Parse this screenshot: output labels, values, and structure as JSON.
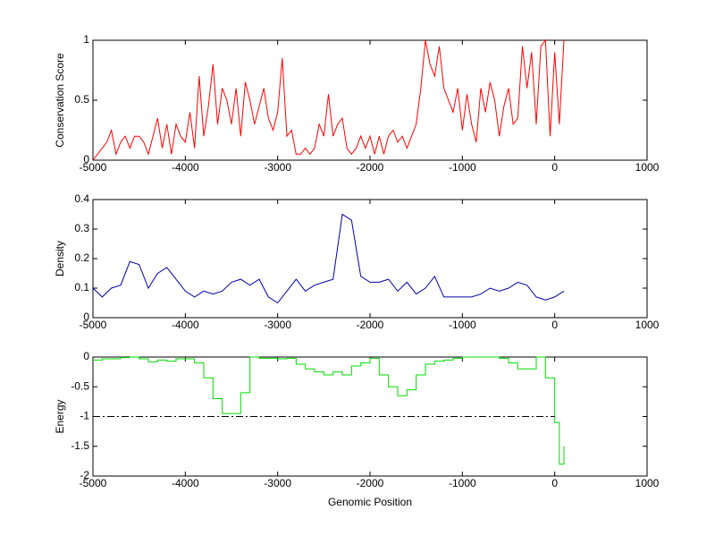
{
  "chart_data": [
    {
      "type": "line",
      "ylabel": "Conservation Score",
      "xlim": [
        -5000,
        1000
      ],
      "xticks": [
        -5000,
        -4000,
        -3000,
        -2000,
        -1000,
        0,
        1000
      ],
      "ylim": [
        0,
        1
      ],
      "yticks": [
        0,
        0.5,
        1
      ],
      "series": [
        {
          "color": "#ff0000",
          "x": [
            -5000,
            -4950,
            -4900,
            -4850,
            -4800,
            -4750,
            -4700,
            -4650,
            -4600,
            -4550,
            -4500,
            -4450,
            -4400,
            -4350,
            -4300,
            -4250,
            -4200,
            -4150,
            -4100,
            -4050,
            -4000,
            -3950,
            -3900,
            -3850,
            -3800,
            -3750,
            -3700,
            -3650,
            -3600,
            -3550,
            -3500,
            -3450,
            -3400,
            -3350,
            -3300,
            -3250,
            -3200,
            -3150,
            -3100,
            -3050,
            -3000,
            -2950,
            -2900,
            -2850,
            -2800,
            -2750,
            -2700,
            -2650,
            -2600,
            -2550,
            -2500,
            -2450,
            -2400,
            -2350,
            -2300,
            -2250,
            -2200,
            -2150,
            -2100,
            -2050,
            -2000,
            -1950,
            -1900,
            -1850,
            -1800,
            -1750,
            -1700,
            -1650,
            -1600,
            -1550,
            -1500,
            -1450,
            -1400,
            -1350,
            -1300,
            -1250,
            -1200,
            -1150,
            -1100,
            -1050,
            -1000,
            -950,
            -900,
            -850,
            -800,
            -750,
            -700,
            -650,
            -600,
            -550,
            -500,
            -450,
            -400,
            -350,
            -300,
            -250,
            -200,
            -150,
            -100,
            -50,
            0,
            50,
            100
          ],
          "values": [
            0,
            0.05,
            0.1,
            0.15,
            0.25,
            0.05,
            0.15,
            0.2,
            0.1,
            0.2,
            0.2,
            0.15,
            0.05,
            0.2,
            0.35,
            0.1,
            0.3,
            0.05,
            0.3,
            0.2,
            0.15,
            0.4,
            0.1,
            0.7,
            0.2,
            0.45,
            0.8,
            0.3,
            0.6,
            0.5,
            0.3,
            0.6,
            0.2,
            0.65,
            0.5,
            0.3,
            0.45,
            0.6,
            0.35,
            0.25,
            0.4,
            0.85,
            0.2,
            0.25,
            0.05,
            0.05,
            0.1,
            0.05,
            0.1,
            0.3,
            0.2,
            0.55,
            0.2,
            0.3,
            0.35,
            0.1,
            0.05,
            0.1,
            0.2,
            0.1,
            0.2,
            0.05,
            0.2,
            0.05,
            0.2,
            0.25,
            0.15,
            0.2,
            0.1,
            0.2,
            0.3,
            0.6,
            1,
            0.8,
            0.7,
            0.95,
            0.6,
            0.5,
            0.4,
            0.6,
            0.25,
            0.55,
            0.3,
            0.15,
            0.6,
            0.4,
            0.65,
            0.5,
            0.2,
            0.45,
            0.6,
            0.3,
            0.35,
            0.95,
            0.6,
            0.9,
            0.3,
            0.95,
            1,
            0.2,
            0.9,
            0.3,
            1
          ]
        }
      ]
    },
    {
      "type": "line",
      "ylabel": "Density",
      "xlim": [
        -5000,
        1000
      ],
      "xticks": [
        -5000,
        -4000,
        -3000,
        -2000,
        -1000,
        0,
        1000
      ],
      "ylim": [
        0,
        0.4
      ],
      "yticks": [
        0,
        0.1,
        0.2,
        0.3,
        0.4
      ],
      "series": [
        {
          "color": "#0000aa",
          "x": [
            -5000,
            -4900,
            -4800,
            -4700,
            -4600,
            -4500,
            -4400,
            -4300,
            -4200,
            -4100,
            -4000,
            -3900,
            -3800,
            -3700,
            -3600,
            -3500,
            -3400,
            -3300,
            -3200,
            -3100,
            -3000,
            -2900,
            -2800,
            -2700,
            -2600,
            -2500,
            -2400,
            -2300,
            -2200,
            -2100,
            -2000,
            -1900,
            -1800,
            -1700,
            -1600,
            -1500,
            -1400,
            -1300,
            -1200,
            -1100,
            -1000,
            -900,
            -800,
            -700,
            -600,
            -500,
            -400,
            -300,
            -200,
            -100,
            0,
            100
          ],
          "values": [
            0.1,
            0.07,
            0.1,
            0.11,
            0.19,
            0.18,
            0.1,
            0.15,
            0.17,
            0.13,
            0.09,
            0.07,
            0.09,
            0.08,
            0.09,
            0.12,
            0.13,
            0.11,
            0.13,
            0.07,
            0.05,
            0.09,
            0.13,
            0.09,
            0.11,
            0.12,
            0.13,
            0.35,
            0.33,
            0.14,
            0.12,
            0.12,
            0.13,
            0.09,
            0.12,
            0.08,
            0.1,
            0.14,
            0.07,
            0.07,
            0.07,
            0.07,
            0.08,
            0.1,
            0.09,
            0.1,
            0.12,
            0.11,
            0.07,
            0.06,
            0.07,
            0.09
          ]
        }
      ]
    },
    {
      "type": "line",
      "ylabel": "Energy",
      "xlabel": "Genomic Position",
      "drawstyle": "steps",
      "xlim": [
        -5000,
        1000
      ],
      "xticks": [
        -5000,
        -4000,
        -3000,
        -2000,
        -1000,
        0,
        1000
      ],
      "ylim": [
        -2,
        0
      ],
      "yticks": [
        -2,
        -1.5,
        -1,
        -0.5,
        0
      ],
      "series": [
        {
          "color": "#00dd00",
          "x": [
            -5000,
            -4900,
            -4800,
            -4700,
            -4600,
            -4500,
            -4400,
            -4300,
            -4200,
            -4100,
            -4000,
            -3900,
            -3800,
            -3700,
            -3600,
            -3500,
            -3400,
            -3300,
            -3200,
            -3100,
            -3000,
            -2900,
            -2800,
            -2700,
            -2600,
            -2500,
            -2400,
            -2300,
            -2200,
            -2100,
            -2000,
            -1900,
            -1800,
            -1700,
            -1600,
            -1500,
            -1400,
            -1300,
            -1200,
            -1100,
            -1000,
            -900,
            -800,
            -700,
            -600,
            -500,
            -400,
            -300,
            -200,
            -100,
            0,
            50,
            100
          ],
          "values": [
            -0.05,
            -0.03,
            -0.03,
            -0.01,
            0,
            -0.03,
            -0.08,
            -0.05,
            -0.07,
            -0.03,
            -0.03,
            -0.1,
            -0.35,
            -0.7,
            -0.95,
            -0.95,
            -0.6,
            0,
            -0.02,
            -0.02,
            -0.03,
            -0.02,
            -0.12,
            -0.2,
            -0.25,
            -0.3,
            -0.25,
            -0.3,
            -0.15,
            -0.1,
            -0.02,
            -0.3,
            -0.5,
            -0.65,
            -0.55,
            -0.3,
            -0.12,
            -0.07,
            -0.05,
            -0.02,
            0,
            0,
            0,
            0,
            -0.02,
            -0.1,
            -0.2,
            -0.2,
            0,
            -0.35,
            -1.1,
            -1.8,
            -1.5
          ]
        },
        {
          "color": "#000000",
          "line_style": "dashdot",
          "x": [
            -5000,
            0
          ],
          "values": [
            -1,
            -1
          ]
        }
      ]
    }
  ]
}
